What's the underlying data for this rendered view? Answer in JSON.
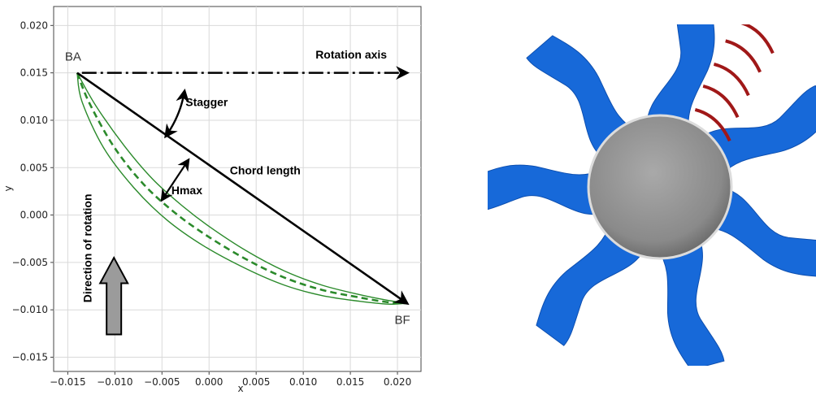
{
  "chart_data": {
    "type": "line",
    "xlabel": "x",
    "ylabel": "y",
    "xlim": [
      -0.0165,
      0.0225
    ],
    "ylim": [
      -0.0165,
      0.022
    ],
    "x_ticks": [
      -0.015,
      -0.01,
      -0.005,
      0.0,
      0.005,
      0.01,
      0.015,
      0.02
    ],
    "x_tick_labels": [
      "−0.015",
      "−0.010",
      "−0.005",
      "0.000",
      "0.005",
      "0.010",
      "0.015",
      "0.020"
    ],
    "y_ticks": [
      -0.015,
      -0.01,
      -0.005,
      0.0,
      0.005,
      0.01,
      0.015,
      0.02
    ],
    "y_tick_labels": [
      "−0.015",
      "−0.010",
      "−0.005",
      "0.000",
      "0.005",
      "0.010",
      "0.015",
      "0.020"
    ],
    "grid": true,
    "leading_edge": [
      -0.014,
      0.015
    ],
    "trailing_edge": [
      0.021,
      -0.0093
    ],
    "series": [
      {
        "values": [
          [
            -0.014,
            0.015
          ],
          [
            -0.012,
            0.0115
          ],
          [
            -0.009,
            0.0073
          ],
          [
            -0.006,
            0.0038
          ],
          [
            -0.003,
            0.0011
          ],
          [
            0.0,
            -0.0012
          ],
          [
            0.004,
            -0.0038
          ],
          [
            0.008,
            -0.0059
          ],
          [
            0.012,
            -0.0074
          ],
          [
            0.016,
            -0.0084
          ],
          [
            0.019,
            -0.009
          ],
          [
            0.021,
            -0.0093
          ]
        ],
        "color": "#2b8a2b",
        "style": "solid"
      },
      {
        "values": [
          [
            -0.014,
            0.015
          ],
          [
            -0.0135,
            0.012
          ],
          [
            -0.0112,
            0.0071
          ],
          [
            -0.008,
            0.0029
          ],
          [
            -0.0045,
            -0.0005
          ],
          [
            -0.0005,
            -0.0033
          ],
          [
            0.004,
            -0.0057
          ],
          [
            0.008,
            -0.0074
          ],
          [
            0.012,
            -0.0085
          ],
          [
            0.016,
            -0.0091
          ],
          [
            0.019,
            -0.0094
          ],
          [
            0.021,
            -0.0093
          ]
        ],
        "color": "#2b8a2b",
        "style": "solid"
      },
      {
        "values": [
          [
            -0.014,
            0.015
          ],
          [
            -0.0127,
            0.0118
          ],
          [
            -0.0101,
            0.0072
          ],
          [
            -0.007,
            0.0033
          ],
          [
            -0.0037,
            0.0003
          ],
          [
            -0.0002,
            -0.0022
          ],
          [
            0.004,
            -0.0047
          ],
          [
            0.008,
            -0.0066
          ],
          [
            0.012,
            -0.0079
          ],
          [
            0.016,
            -0.0087
          ],
          [
            0.019,
            -0.0092
          ],
          [
            0.021,
            -0.0093
          ]
        ],
        "color": "#2b8a2b",
        "style": "dashed"
      },
      {
        "values": [
          [
            -0.014,
            0.015
          ],
          [
            0.021,
            -0.0093
          ]
        ],
        "color": "#000000",
        "style": "solid-arrow"
      },
      {
        "values": [
          [
            -0.0135,
            0.015
          ],
          [
            0.021,
            0.015
          ]
        ],
        "color": "#000000",
        "style": "dashdot-arrow"
      }
    ],
    "annotations": [
      {
        "text": "BA",
        "x": -0.0153,
        "y": 0.0163
      },
      {
        "text": "BF",
        "x": 0.0197,
        "y": -0.0115
      },
      {
        "text": "Rotation axis",
        "x": 0.0113,
        "y": 0.0165
      },
      {
        "text": "Stagger",
        "x": -0.0025,
        "y": 0.0115
      },
      {
        "text": "Chord length",
        "x": 0.0022,
        "y": 0.0043
      },
      {
        "text": "Hmax",
        "x": -0.004,
        "y": 0.0022
      },
      {
        "text": "Direction of rotation",
        "x": -0.0125,
        "y": -0.0035
      }
    ]
  },
  "fan": {
    "blade_count": 7,
    "blade_color": "#1769d9",
    "highlight_stripe_color": "#a01818",
    "hub_color": "#8c8c8c"
  }
}
